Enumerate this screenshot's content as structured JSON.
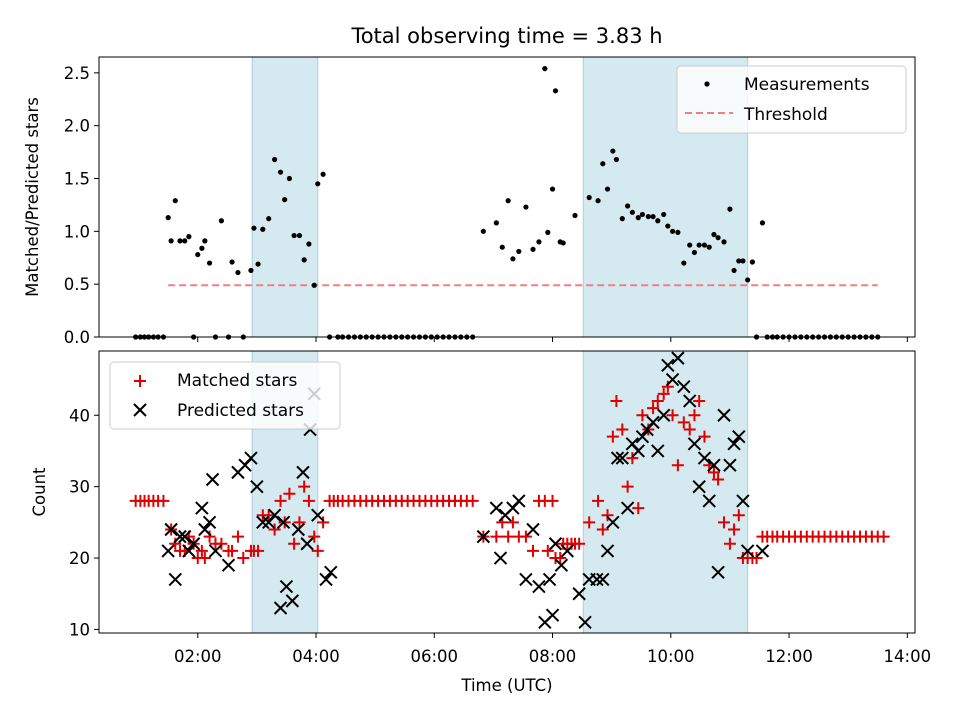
{
  "chart_data": [
    {
      "type": "scatter",
      "title": "Total observing time = 3.83 h",
      "xlabel": "",
      "ylabel": "Matched/Predicted stars",
      "ylim": [
        0,
        2.65
      ],
      "yticks": [
        "0.0",
        "0.5",
        "1.0",
        "1.5",
        "2.0",
        "2.5"
      ],
      "x_unit": "hours UTC",
      "xlim": [
        0.33,
        14.13
      ],
      "highlight_spans": [
        [
          2.92,
          4.03
        ],
        [
          8.52,
          11.3
        ]
      ],
      "highlight_color": "#d4e9f0",
      "legend_position": "top-right",
      "series": [
        {
          "name": "Measurements",
          "color": "#000000",
          "marker": "dot",
          "x": [
            0.95,
            1.03,
            1.1,
            1.17,
            1.25,
            1.33,
            1.42,
            1.5,
            1.55,
            1.62,
            1.7,
            1.78,
            1.85,
            1.93,
            2.0,
            2.07,
            2.12,
            2.2,
            2.3,
            2.4,
            2.52,
            2.58,
            2.68,
            2.77,
            2.9,
            2.95,
            3.02,
            3.1,
            3.2,
            3.3,
            3.4,
            3.47,
            3.55,
            3.63,
            3.72,
            3.8,
            3.88,
            3.97,
            4.03,
            4.12,
            4.23,
            4.37,
            4.45,
            4.55,
            4.65,
            4.75,
            4.85,
            4.95,
            5.05,
            5.15,
            5.25,
            5.35,
            5.45,
            5.55,
            5.65,
            5.75,
            5.85,
            5.95,
            6.05,
            6.15,
            6.25,
            6.35,
            6.45,
            6.55,
            6.65,
            6.83,
            7.05,
            7.15,
            7.25,
            7.33,
            7.43,
            7.55,
            7.67,
            7.77,
            7.87,
            7.92,
            8.0,
            8.05,
            8.13,
            8.18,
            8.38,
            8.62,
            8.77,
            8.85,
            8.93,
            9.02,
            9.08,
            9.18,
            9.27,
            9.35,
            9.45,
            9.52,
            9.62,
            9.7,
            9.78,
            9.88,
            9.95,
            10.03,
            10.12,
            10.22,
            10.32,
            10.4,
            10.48,
            10.57,
            10.65,
            10.73,
            10.8,
            10.9,
            11.0,
            11.07,
            11.15,
            11.22,
            11.3,
            11.38,
            11.45,
            11.55,
            11.63,
            11.72,
            11.8,
            11.9,
            12.0,
            12.1,
            12.2,
            12.3,
            12.4,
            12.5,
            12.6,
            12.7,
            12.8,
            12.9,
            13.0,
            13.1,
            13.2,
            13.3,
            13.4,
            13.5
          ],
          "y": [
            0,
            0,
            0,
            0,
            0,
            0,
            0,
            1.13,
            0.91,
            1.29,
            0.91,
            0.91,
            0.95,
            0,
            0.78,
            0.84,
            0.91,
            0.7,
            0,
            1.1,
            0,
            0.71,
            0.61,
            0,
            0.63,
            1.03,
            0.69,
            1.02,
            1.12,
            1.68,
            1.56,
            1.3,
            1.5,
            0.96,
            0.96,
            0.73,
            0.88,
            0.49,
            1.45,
            1.54,
            0,
            0,
            0,
            0,
            0,
            0,
            0,
            0,
            0,
            0,
            0,
            0,
            0,
            0,
            0,
            0,
            0,
            0,
            0,
            0,
            0,
            0,
            0,
            0,
            0,
            1.0,
            1.08,
            0.85,
            1.29,
            0.74,
            0.81,
            1.23,
            0.83,
            0.9,
            2.54,
            0.99,
            1.4,
            2.33,
            0.9,
            0.89,
            1.15,
            1.32,
            1.29,
            1.64,
            1.4,
            1.76,
            1.68,
            1.12,
            1.24,
            1.18,
            1.13,
            1.16,
            1.14,
            1.14,
            1.1,
            1.16,
            1.05,
            1.0,
            0.99,
            0.7,
            0.87,
            0.8,
            0.87,
            0.87,
            0.85,
            0.97,
            0.94,
            0.9,
            1.21,
            0.63,
            0.72,
            0.72,
            0.54,
            0.71,
            0,
            1.08,
            0,
            0,
            0,
            0,
            0,
            0,
            0,
            0,
            0,
            0,
            0,
            0,
            0,
            0,
            0,
            0,
            0,
            0,
            0,
            0
          ]
        },
        {
          "name": "Threshold",
          "type": "line",
          "style": "dashed",
          "color": "#f08080",
          "x": [
            1.5,
            13.5
          ],
          "y": [
            0.49,
            0.49
          ]
        }
      ]
    },
    {
      "type": "scatter",
      "title": "",
      "xlabel": "Time (UTC)",
      "ylabel": "Count",
      "ylim": [
        9.5,
        49
      ],
      "yticks": [
        "10",
        "20",
        "30",
        "40"
      ],
      "xticks": [
        "02:00",
        "04:00",
        "06:00",
        "08:00",
        "10:00",
        "12:00",
        "14:00"
      ],
      "x_unit": "hours UTC",
      "xlim": [
        0.33,
        14.13
      ],
      "highlight_spans": [
        [
          2.92,
          4.03
        ],
        [
          8.52,
          11.3
        ]
      ],
      "highlight_color": "#d4e9f0",
      "legend_position": "top-left",
      "series": [
        {
          "name": "Matched stars",
          "color": "#e00000",
          "marker": "plus",
          "x": [
            0.95,
            1.03,
            1.1,
            1.17,
            1.25,
            1.33,
            1.42,
            1.55,
            1.62,
            1.7,
            1.78,
            1.85,
            1.93,
            2.0,
            2.07,
            2.12,
            2.2,
            2.3,
            2.4,
            2.52,
            2.58,
            2.68,
            2.77,
            2.9,
            2.95,
            3.02,
            3.1,
            3.2,
            3.3,
            3.4,
            3.47,
            3.55,
            3.63,
            3.72,
            3.8,
            3.88,
            3.97,
            4.03,
            4.12,
            4.23,
            4.3,
            4.37,
            4.45,
            4.55,
            4.65,
            4.75,
            4.85,
            4.95,
            5.05,
            5.15,
            5.25,
            5.35,
            5.45,
            5.55,
            5.65,
            5.75,
            5.85,
            5.95,
            6.05,
            6.15,
            6.25,
            6.35,
            6.45,
            6.55,
            6.65,
            6.83,
            7.05,
            7.15,
            7.25,
            7.33,
            7.43,
            7.55,
            7.67,
            7.77,
            7.87,
            7.92,
            8.0,
            8.05,
            8.13,
            8.18,
            8.25,
            8.32,
            8.38,
            8.45,
            8.62,
            8.77,
            8.85,
            8.93,
            9.02,
            9.08,
            9.18,
            9.27,
            9.35,
            9.45,
            9.52,
            9.62,
            9.7,
            9.78,
            9.88,
            9.95,
            10.03,
            10.12,
            10.22,
            10.32,
            10.4,
            10.48,
            10.57,
            10.65,
            10.73,
            10.8,
            10.9,
            11.0,
            11.07,
            11.15,
            11.22,
            11.3,
            11.38,
            11.45,
            11.55,
            11.63,
            11.72,
            11.8,
            11.9,
            12.0,
            12.1,
            12.2,
            12.3,
            12.4,
            12.5,
            12.6,
            12.7,
            12.8,
            12.9,
            13.0,
            13.1,
            13.2,
            13.3,
            13.4,
            13.5,
            13.6
          ],
          "y": [
            28,
            28,
            28,
            28,
            28,
            28,
            28,
            24,
            22,
            21,
            21,
            23,
            22,
            20,
            21,
            20,
            23,
            22,
            22,
            21,
            21,
            23,
            20,
            21,
            21,
            21,
            26,
            26,
            24,
            28,
            25,
            29,
            22,
            25,
            30,
            28,
            23,
            21,
            25,
            28,
            28,
            28,
            28,
            28,
            28,
            28,
            28,
            28,
            28,
            28,
            28,
            28,
            28,
            28,
            28,
            28,
            28,
            28,
            28,
            28,
            28,
            28,
            28,
            28,
            28,
            23,
            23,
            25,
            23,
            25,
            23,
            23,
            21,
            28,
            28,
            21,
            28,
            20,
            20,
            22,
            22,
            22,
            22,
            22,
            25,
            28,
            24,
            26,
            37,
            42,
            38,
            30,
            34,
            27,
            40,
            38,
            41,
            42,
            43,
            44,
            40,
            33,
            39,
            38,
            40,
            42,
            37,
            33,
            32,
            31,
            25,
            22,
            24,
            26,
            20,
            20,
            20,
            20,
            23,
            23,
            23,
            23,
            23,
            23,
            23,
            23,
            23,
            23,
            23,
            23,
            23,
            23,
            23,
            23,
            23,
            23,
            23,
            23,
            23,
            23
          ]
        },
        {
          "name": "Predicted stars",
          "color": "#000000",
          "marker": "x",
          "x": [
            1.5,
            1.55,
            1.62,
            1.7,
            1.78,
            1.85,
            1.93,
            2.07,
            2.12,
            2.2,
            2.25,
            2.3,
            2.52,
            2.68,
            2.8,
            2.9,
            3.0,
            3.1,
            3.2,
            3.3,
            3.4,
            3.45,
            3.5,
            3.6,
            3.7,
            3.78,
            3.85,
            3.9,
            3.97,
            4.03,
            4.17,
            4.25,
            6.83,
            7.05,
            7.12,
            7.2,
            7.33,
            7.43,
            7.55,
            7.67,
            7.77,
            7.87,
            7.95,
            8.0,
            8.05,
            8.15,
            8.25,
            8.45,
            8.55,
            8.62,
            8.75,
            8.85,
            8.93,
            9.02,
            9.1,
            9.18,
            9.27,
            9.35,
            9.45,
            9.52,
            9.6,
            9.7,
            9.78,
            9.88,
            9.95,
            10.03,
            10.12,
            10.22,
            10.32,
            10.4,
            10.48,
            10.57,
            10.65,
            10.73,
            10.8,
            10.9,
            11.0,
            11.07,
            11.15,
            11.22,
            11.3,
            11.55
          ],
          "y": [
            21,
            24,
            17,
            23,
            23,
            21,
            22,
            27,
            24,
            25,
            31,
            21,
            19,
            32,
            33,
            34,
            30,
            25,
            25,
            26,
            13,
            25,
            16,
            14,
            24,
            32,
            22,
            38,
            43,
            26,
            17,
            18,
            23,
            27,
            20,
            26,
            27,
            28,
            17,
            24,
            16,
            11,
            17,
            12,
            22,
            19,
            21,
            15,
            11,
            17,
            17,
            17,
            21,
            25,
            34,
            34,
            27,
            36,
            35,
            37,
            38,
            39,
            35,
            40,
            47,
            45,
            48,
            44,
            42,
            36,
            30,
            34,
            28,
            33,
            18,
            40,
            33,
            36,
            37,
            28,
            21,
            21
          ]
        }
      ]
    }
  ]
}
